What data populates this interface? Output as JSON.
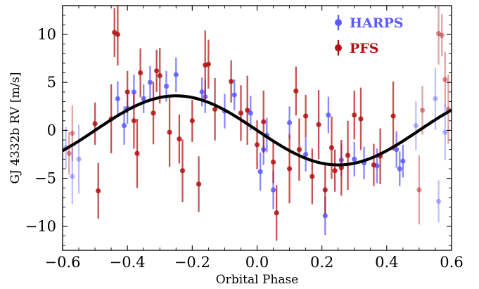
{
  "chart_data": {
    "type": "scatter",
    "xlabel": "Orbital Phase",
    "ylabel": "GJ 4332b RV [m/s]",
    "xlim": [
      -0.6,
      0.6
    ],
    "ylim": [
      -12.5,
      13
    ],
    "x_ticks": [
      -0.6,
      -0.4,
      -0.2,
      0.0,
      0.2,
      0.4,
      0.6
    ],
    "x_tick_labels": [
      "−0.6",
      "−0.4",
      "−0.2",
      "0.0",
      "0.2",
      "0.4",
      "0.6"
    ],
    "y_ticks": [
      -10,
      -5,
      0,
      5,
      10
    ],
    "y_tick_labels": [
      "−10",
      "−5",
      "0",
      "5",
      "10"
    ],
    "grid": false,
    "legend_position": "top-right",
    "model": {
      "name": "",
      "amplitude": 3.6,
      "peak_phase": -0.25,
      "color": "#000000"
    },
    "series": [
      {
        "name": "HARPS",
        "color": "#5a5aff",
        "x": [
          -0.43,
          -0.41,
          -0.4,
          -0.38,
          -0.35,
          -0.33,
          -0.28,
          -0.25,
          -0.17,
          -0.16,
          -0.1,
          -0.07,
          -0.02,
          0.01,
          0.02,
          0.03,
          0.05,
          0.1,
          0.15,
          0.21,
          0.22,
          0.26,
          0.3,
          0.33,
          0.37,
          0.43,
          0.44,
          0.45
        ],
        "y": [
          3.3,
          0.5,
          2.3,
          4.0,
          3.3,
          5.0,
          4.6,
          5.8,
          4.0,
          3.5,
          2.0,
          3.7,
          1.8,
          -4.3,
          -2.0,
          -0.5,
          -6.2,
          0.8,
          -2.5,
          -8.9,
          1.6,
          -3.1,
          -3.0,
          -3.4,
          -3.7,
          -2.0,
          -4.0,
          -3.2
        ],
        "err": [
          1.8,
          2.0,
          1.6,
          1.8,
          1.5,
          1.7,
          1.6,
          1.8,
          1.5,
          1.7,
          1.8,
          1.6,
          1.8,
          2.0,
          1.6,
          1.8,
          2.0,
          1.7,
          1.8,
          2.0,
          1.9,
          1.7,
          1.8,
          1.7,
          1.8,
          1.9,
          1.8,
          1.7
        ]
      },
      {
        "name": "PFS",
        "color": "#b01010",
        "x": [
          -0.5,
          -0.49,
          -0.45,
          -0.44,
          -0.43,
          -0.4,
          -0.38,
          -0.37,
          -0.36,
          -0.32,
          -0.31,
          -0.3,
          -0.27,
          -0.24,
          -0.23,
          -0.2,
          -0.18,
          -0.16,
          -0.15,
          -0.13,
          -0.08,
          -0.05,
          -0.03,
          0.0,
          0.02,
          0.05,
          0.06,
          0.1,
          0.12,
          0.13,
          0.15,
          0.17,
          0.19,
          0.21,
          0.23,
          0.24,
          0.26,
          0.28,
          0.3,
          0.32,
          0.36,
          0.38,
          0.42
        ],
        "y": [
          0.7,
          -6.3,
          1.2,
          10.2,
          10.0,
          4.0,
          1.0,
          -2.4,
          6.0,
          1.8,
          6.2,
          5.7,
          -0.2,
          -0.9,
          -4.2,
          1.0,
          -5.6,
          6.8,
          6.9,
          2.2,
          5.1,
          1.8,
          2.1,
          -1.5,
          0.9,
          -3.3,
          -8.6,
          -4.0,
          4.1,
          -2.0,
          1.5,
          -4.8,
          0.6,
          -6.2,
          -1.8,
          -4.2,
          -3.9,
          -2.6,
          1.6,
          1.2,
          -3.6,
          -2.7,
          1.5
        ]
      },
      {
        "name": "",
        "color": "#b01010",
        "x": [
          -0.58,
          -0.57,
          0.5,
          0.51,
          0.56,
          0.57,
          0.58,
          0.59
        ],
        "y": [
          -2.4,
          -0.3,
          -6.2,
          2.1,
          10.1,
          9.9,
          5.3,
          2.2
        ]
      },
      {
        "name": "",
        "color": "#5a5aff",
        "x": [
          -0.59,
          -0.57,
          -0.55,
          0.49,
          0.55,
          0.56,
          0.58
        ],
        "y": [
          -1.8,
          -4.8,
          -3.0,
          0.5,
          3.3,
          -7.4,
          -0.2
        ]
      }
    ]
  }
}
